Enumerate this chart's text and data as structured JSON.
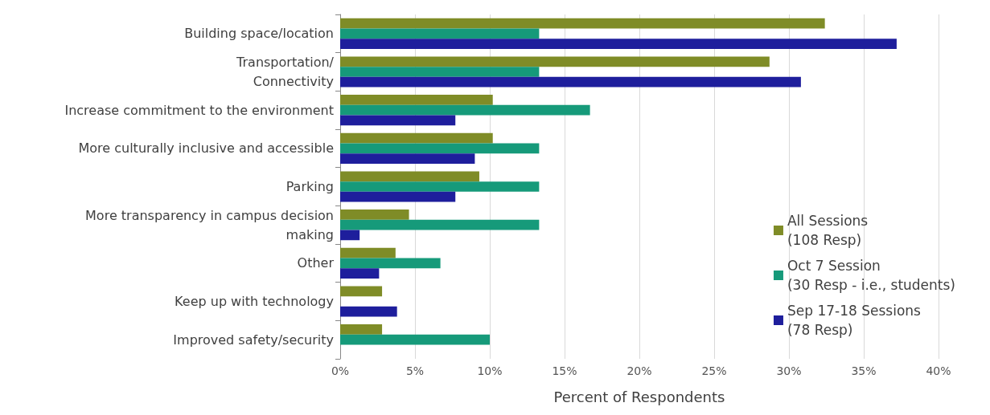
{
  "chart_data": {
    "type": "bar",
    "orientation": "horizontal",
    "xlabel": "Percent of Respondents",
    "categories": [
      "Building space/location",
      "Transportation/\nConnectivity",
      "Increase commitment to the environment",
      "More culturally inclusive and accessible",
      "Parking",
      "More transparency in campus decision\nmaking",
      "Other",
      "Keep up with technology",
      "Improved safety/security"
    ],
    "series": [
      {
        "name": "All Sessions\n(108 Resp)",
        "color": "#7f8c27",
        "values": [
          32.4,
          28.7,
          10.2,
          10.2,
          9.3,
          4.6,
          3.7,
          2.8,
          2.8
        ]
      },
      {
        "name": "Oct 7 Session\n(30 Resp - i.e., students)",
        "color": "#169a7a",
        "values": [
          13.3,
          13.3,
          16.7,
          13.3,
          13.3,
          13.3,
          6.7,
          0,
          10.0
        ]
      },
      {
        "name": "Sep 17-18 Sessions\n(78 Resp)",
        "color": "#1e1e9c",
        "values": [
          37.2,
          30.8,
          7.7,
          9.0,
          7.7,
          1.3,
          2.6,
          3.8,
          0
        ]
      }
    ],
    "xlim": [
      0,
      40
    ],
    "xticks": [
      {
        "value": 0,
        "label": "0%"
      },
      {
        "value": 5,
        "label": "5%"
      },
      {
        "value": 10,
        "label": "10%"
      },
      {
        "value": 15,
        "label": "15%"
      },
      {
        "value": 20,
        "label": "20%"
      },
      {
        "value": 25,
        "label": "25%"
      },
      {
        "value": 30,
        "label": "30%"
      },
      {
        "value": 35,
        "label": "35%"
      },
      {
        "value": 40,
        "label": "40%"
      }
    ],
    "grid": "x",
    "legend": "right"
  }
}
